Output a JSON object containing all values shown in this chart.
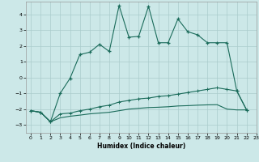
{
  "title": "",
  "xlabel": "Humidex (Indice chaleur)",
  "bg_color": "#cce8e8",
  "line_color": "#1a6b5a",
  "grid_color": "#aacccc",
  "xlim": [
    -0.5,
    23
  ],
  "ylim": [
    -3.5,
    4.8
  ],
  "yticks": [
    -3,
    -2,
    -1,
    0,
    1,
    2,
    3,
    4
  ],
  "xticks": [
    0,
    1,
    2,
    3,
    4,
    5,
    6,
    7,
    8,
    9,
    10,
    11,
    12,
    13,
    14,
    15,
    16,
    17,
    18,
    19,
    20,
    21,
    22,
    23
  ],
  "series1_x": [
    0,
    1,
    2,
    3,
    4,
    5,
    6,
    7,
    8,
    9,
    10,
    11,
    12,
    13,
    14,
    15,
    16,
    17,
    18,
    19,
    20,
    21,
    22
  ],
  "series1_y": [
    -2.1,
    -2.2,
    -2.8,
    -1.0,
    -0.05,
    1.45,
    1.6,
    2.1,
    1.65,
    4.55,
    2.55,
    2.6,
    4.5,
    2.2,
    2.2,
    3.7,
    2.9,
    2.7,
    2.2,
    2.2,
    2.2,
    -0.85,
    -2.05
  ],
  "series2_x": [
    0,
    1,
    2,
    3,
    4,
    5,
    6,
    7,
    8,
    9,
    10,
    11,
    12,
    13,
    14,
    15,
    16,
    17,
    18,
    19,
    20,
    21,
    22
  ],
  "series2_y": [
    -2.1,
    -2.2,
    -2.8,
    -2.3,
    -2.25,
    -2.1,
    -2.0,
    -1.85,
    -1.75,
    -1.55,
    -1.45,
    -1.35,
    -1.3,
    -1.2,
    -1.15,
    -1.05,
    -0.95,
    -0.85,
    -0.75,
    -0.65,
    -0.75,
    -0.85,
    -2.05
  ],
  "series3_x": [
    0,
    1,
    2,
    3,
    4,
    5,
    6,
    7,
    8,
    9,
    10,
    11,
    12,
    13,
    14,
    15,
    16,
    17,
    18,
    19,
    20,
    21,
    22
  ],
  "series3_y": [
    -2.1,
    -2.2,
    -2.8,
    -2.55,
    -2.45,
    -2.38,
    -2.3,
    -2.25,
    -2.2,
    -2.1,
    -2.0,
    -1.95,
    -1.9,
    -1.88,
    -1.85,
    -1.8,
    -1.78,
    -1.75,
    -1.73,
    -1.72,
    -2.0,
    -2.05,
    -2.05
  ]
}
